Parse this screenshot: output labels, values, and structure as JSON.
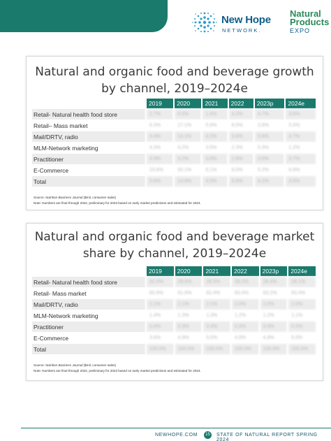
{
  "header": {
    "brand1_name": "New Hope",
    "brand1_sub": "NETWORK.",
    "brand2_line1": "Natural",
    "brand2_line2": "Products",
    "brand2_line3": "EXPO",
    "band_color": "#1a7a6c"
  },
  "tables": [
    {
      "title_line1": "Natural and organic food and beverage growth",
      "title_line2": "by channel, 2019–2024e",
      "columns": [
        "2019",
        "2020",
        "2021",
        "2022",
        "2023p",
        "2024e"
      ],
      "rows": [
        {
          "label": "Retail- Natural health food store",
          "values": [
            "2.7%",
            "6.9%",
            "1.4%",
            "4.2%",
            "4.7%",
            "3.6%"
          ]
        },
        {
          "label": "Retail– Mass market",
          "values": [
            "6.3%",
            "17.1%",
            "5.9%",
            "8.5%",
            "3.9%",
            "5.0%"
          ]
        },
        {
          "label": "Mail/DRTV, radio",
          "values": [
            "4.4%",
            "14.1%",
            "4.2%",
            "3.6%",
            "5.6%",
            "4.7%"
          ]
        },
        {
          "label": "MLM-Network marketing",
          "values": [
            "4.3%",
            "4.2%",
            "3.5%",
            "2.3%",
            "0.3%",
            "1.2%"
          ]
        },
        {
          "label": "Practitioner",
          "values": [
            "4.9%",
            "3.2%",
            "3.6%",
            "2.8%",
            "3.6%",
            "3.7%"
          ]
        },
        {
          "label": "E-Commerce",
          "values": [
            "23.6%",
            "50.1%",
            "6.1%",
            "8.0%",
            "5.2%",
            "6.8%"
          ]
        },
        {
          "label": "Total",
          "values": [
            "5.6%",
            "14.8%",
            "4.5%",
            "6.8%",
            "4.2%",
            "4.6%"
          ]
        }
      ],
      "source_prefix": "Source: ",
      "source_italic": "Nutrition Business Journal",
      "source_suffix": " ($mil, consumer sales)",
      "note": "Note: Numbers are final through 2022, preliminary for 2023 based on early market predictions and estimated for 2024."
    },
    {
      "title_line1": "Natural and organic food and beverage market",
      "title_line2": "share by channel, 2019–2024e",
      "columns": [
        "2019",
        "2020",
        "2021",
        "2022",
        "2023p",
        "2024e"
      ],
      "rows": [
        {
          "label": "Retail- Natural health food store",
          "values": [
            "32.0%",
            "29.6%",
            "28.5%",
            "28.2%",
            "28.4%",
            "28.1%"
          ]
        },
        {
          "label": "Retail- Mass market",
          "values": [
            "60.9%",
            "61.6%",
            "62.4%",
            "63.4%",
            "63.2%",
            "63.4%"
          ]
        },
        {
          "label": "Mail/DRTV, radio",
          "values": [
            "2.1%",
            "2.1%",
            "2.1%",
            "2.0%",
            "2.0%",
            "2.0%"
          ]
        },
        {
          "label": "MLM-Network marketing",
          "values": [
            "1.4%",
            "1.3%",
            "1.3%",
            "1.2%",
            "1.2%",
            "1.1%"
          ]
        },
        {
          "label": "Practitioner",
          "values": [
            "0.4%",
            "0.3%",
            "0.3%",
            "0.3%",
            "0.3%",
            "0.3%"
          ]
        },
        {
          "label": "E-Commerce",
          "values": [
            "3.6%",
            "4.9%",
            "5.0%",
            "4.9%",
            "4.9%",
            "5.0%"
          ]
        },
        {
          "label": "Total",
          "values": [
            "100.0%",
            "100.0%",
            "100.0%",
            "100.0%",
            "100.0%",
            "100.0%"
          ]
        }
      ],
      "source_prefix": "Source: ",
      "source_italic": "Nutrition Business Journal",
      "source_suffix": " ($mil, consumer sales)",
      "note": "Note: Numbers are final through 2022, preliminary for 2023 based on early market predictions and estimated for 2024."
    }
  ],
  "footer": {
    "site": "NEWHOPE.COM",
    "page": "15",
    "report": "STATE OF NATURAL REPORT SPRING 2024"
  }
}
